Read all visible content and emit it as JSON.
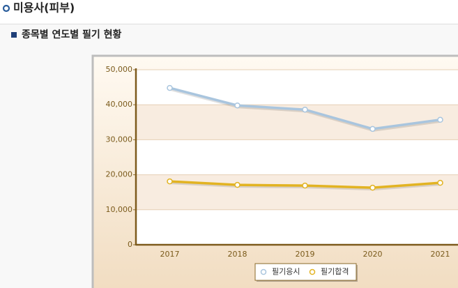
{
  "page": {
    "title": "미용사(피부)",
    "section": "종목별 연도별 필기 현황"
  },
  "chart_data": {
    "type": "line",
    "categories": [
      "2017",
      "2018",
      "2019",
      "2020",
      "2021"
    ],
    "series": [
      {
        "name": "필기응시",
        "color": "#a9c5de",
        "values": [
          44800,
          39800,
          38600,
          33100,
          35700
        ]
      },
      {
        "name": "필기합격",
        "color": "#e2b322",
        "values": [
          18100,
          17100,
          16900,
          16300,
          17700
        ]
      }
    ],
    "ylim": [
      0,
      50000
    ],
    "yticks": [
      0,
      {
        "value": 10000,
        "label": "10,000"
      },
      {
        "value": 20000,
        "label": "20,000"
      },
      {
        "value": 30000,
        "label": "30,000"
      },
      {
        "value": 40000,
        "label": "40,000"
      },
      {
        "value": 50000,
        "label": "50,000"
      }
    ],
    "legend": "bottom"
  }
}
